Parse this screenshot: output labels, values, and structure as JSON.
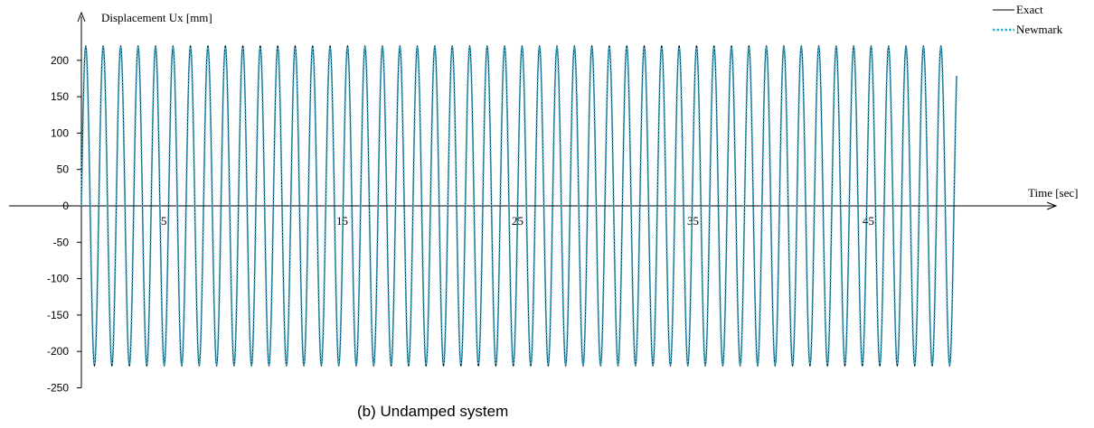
{
  "chart_data": {
    "type": "line",
    "title": "",
    "caption": "(b)  Undamped system",
    "xlabel": "Time [sec]",
    "ylabel": "Displacement Ux  [mm]",
    "ylim": [
      -250,
      225
    ],
    "xlim": [
      0,
      50
    ],
    "yticks": [
      -250,
      -200,
      -150,
      -100,
      -50,
      0,
      50,
      100,
      150,
      200
    ],
    "xticks": [
      5,
      15,
      25,
      35,
      45
    ],
    "grid": false,
    "legend_position": "top-right",
    "series": [
      {
        "name": "Exact",
        "style": "solid",
        "color": "#000000",
        "function": "A*sin(2*pi*t/T)",
        "amplitude": 220,
        "period": 0.995,
        "t_start": 0,
        "t_end": 49.9
      },
      {
        "name": "Newmark",
        "style": "dotted",
        "color": "#2ab0d8",
        "function": "A*sin(2*pi*t/T)",
        "amplitude": 218,
        "period": 0.995,
        "t_start": 0,
        "t_end": 49.9
      }
    ]
  }
}
